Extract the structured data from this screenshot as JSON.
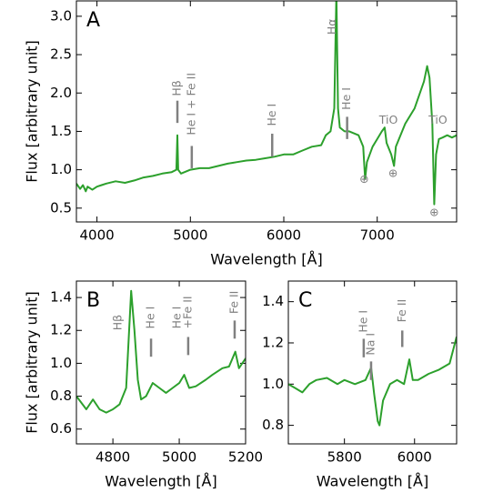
{
  "chart_data": [
    {
      "type": "line",
      "panel_label": "A",
      "xlabel": "Wavelength [Å]",
      "ylabel": "Flux [arbitrary unit]",
      "color": "#2ca02c",
      "xlim": [
        3780,
        7850
      ],
      "ylim": [
        0.32,
        3.2
      ],
      "xticks": [
        4000,
        5000,
        6000,
        7000
      ],
      "yticks": [
        0.5,
        {
          "value": 1,
          "label": "1.0"
        },
        1.5,
        {
          "value": 2,
          "label": "2.0"
        },
        2.5,
        {
          "value": 3,
          "label": "3.0"
        }
      ],
      "x": [
        3780,
        3820,
        3850,
        3880,
        3900,
        3950,
        4000,
        4050,
        4100,
        4200,
        4300,
        4400,
        4500,
        4600,
        4700,
        4800,
        4850,
        4861,
        4870,
        4900,
        5000,
        5100,
        5200,
        5300,
        5400,
        5500,
        5600,
        5700,
        5800,
        5900,
        6000,
        6100,
        6200,
        6300,
        6400,
        6450,
        6500,
        6540,
        6563,
        6580,
        6600,
        6650,
        6700,
        6800,
        6850,
        6870,
        6890,
        6950,
        7000,
        7050,
        7080,
        7100,
        7150,
        7180,
        7200,
        7300,
        7400,
        7500,
        7535,
        7560,
        7590,
        7610,
        7630,
        7660,
        7700,
        7750,
        7800,
        7850
      ],
      "values": [
        0.82,
        0.75,
        0.8,
        0.72,
        0.78,
        0.74,
        0.78,
        0.8,
        0.82,
        0.85,
        0.83,
        0.86,
        0.9,
        0.92,
        0.95,
        0.97,
        1.0,
        1.45,
        1.0,
        0.95,
        1.0,
        1.02,
        1.02,
        1.05,
        1.08,
        1.1,
        1.12,
        1.13,
        1.15,
        1.17,
        1.2,
        1.2,
        1.25,
        1.3,
        1.32,
        1.45,
        1.5,
        1.8,
        3.3,
        1.8,
        1.55,
        1.5,
        1.5,
        1.45,
        1.3,
        0.88,
        1.1,
        1.3,
        1.4,
        1.5,
        1.55,
        1.35,
        1.2,
        1.05,
        1.3,
        1.6,
        1.8,
        2.15,
        2.35,
        2.2,
        1.6,
        0.55,
        1.2,
        1.4,
        1.42,
        1.45,
        1.42,
        1.45
      ],
      "annotations": [
        {
          "text": "Hβ",
          "x": 4861,
          "y": 1.96,
          "vertical": true,
          "marker": [
            1.61,
            1.9
          ]
        },
        {
          "text": "He I + Fe II",
          "x": 5015,
          "y": 1.45,
          "vertical": true,
          "marker": [
            1.02,
            1.31
          ]
        },
        {
          "text": "He I",
          "x": 5876,
          "y": 1.57,
          "vertical": true,
          "marker": [
            1.17,
            1.47
          ]
        },
        {
          "text": "Hα",
          "x": 6520,
          "y": 2.76,
          "vertical": true
        },
        {
          "text": "He I",
          "x": 6678,
          "y": 1.78,
          "vertical": true,
          "marker": [
            1.4,
            1.69
          ]
        },
        {
          "text": "TiO",
          "x": 7120,
          "y": 1.64,
          "vertical": false
        },
        {
          "text": "TiO",
          "x": 7650,
          "y": 1.64,
          "vertical": false
        },
        {
          "text": "⊕",
          "x": 6860,
          "y": 0.87,
          "vertical": false
        },
        {
          "text": "⊕",
          "x": 7170,
          "y": 0.95,
          "vertical": false
        },
        {
          "text": "⊕",
          "x": 7610,
          "y": 0.44,
          "vertical": false
        }
      ]
    },
    {
      "type": "line",
      "panel_label": "B",
      "xlabel": "Wavelength [Å]",
      "ylabel": "Flux [arbitrary unit]",
      "color": "#2ca02c",
      "xlim": [
        4690,
        5200
      ],
      "ylim": [
        0.51,
        1.5
      ],
      "xticks": [
        4800,
        5000,
        5200
      ],
      "yticks": [
        0.6,
        0.8,
        {
          "value": 1,
          "label": "1.0"
        },
        1.2,
        1.4
      ],
      "x": [
        4690,
        4720,
        4740,
        4760,
        4780,
        4800,
        4820,
        4840,
        4855,
        4865,
        4875,
        4885,
        4900,
        4920,
        4940,
        4960,
        4980,
        5000,
        5015,
        5030,
        5050,
        5080,
        5100,
        5130,
        5150,
        5169,
        5180,
        5200
      ],
      "values": [
        0.8,
        0.72,
        0.78,
        0.72,
        0.7,
        0.72,
        0.75,
        0.85,
        1.44,
        1.2,
        0.9,
        0.78,
        0.8,
        0.88,
        0.85,
        0.82,
        0.85,
        0.88,
        0.93,
        0.85,
        0.86,
        0.9,
        0.93,
        0.97,
        0.98,
        1.07,
        0.97,
        1.03
      ],
      "annotations": [
        {
          "text": "Hβ",
          "x": 4816,
          "y": 1.2,
          "vertical": true
        },
        {
          "text": "He I",
          "x": 4915,
          "y": 1.21,
          "vertical": true,
          "marker": [
            1.04,
            1.15
          ]
        },
        {
          "text": "He I",
          "x": 4995,
          "y": 1.21,
          "vertical": true
        },
        {
          "text": "+Fe II",
          "x": 5027,
          "y": 1.21,
          "vertical": true,
          "marker": [
            1.05,
            1.16
          ]
        },
        {
          "text": "Fe II",
          "x": 5167,
          "y": 1.3,
          "vertical": true,
          "marker": [
            1.15,
            1.26
          ]
        }
      ]
    },
    {
      "type": "line",
      "panel_label": "C",
      "xlabel": "Wavelength [Å]",
      "color": "#2ca02c",
      "xlim": [
        5640,
        6120
      ],
      "ylim": [
        0.71,
        1.5
      ],
      "xticks": [
        5800,
        6000
      ],
      "yticks": [
        0.8,
        {
          "value": 1,
          "label": "1.0"
        },
        1.2,
        1.4
      ],
      "x": [
        5640,
        5660,
        5680,
        5700,
        5720,
        5750,
        5780,
        5800,
        5830,
        5860,
        5876,
        5885,
        5895,
        5900,
        5910,
        5930,
        5950,
        5970,
        5985,
        5995,
        6010,
        6040,
        6070,
        6100,
        6120
      ],
      "values": [
        1.0,
        0.98,
        0.96,
        1.0,
        1.02,
        1.03,
        1.0,
        1.02,
        1.0,
        1.02,
        1.08,
        0.95,
        0.82,
        0.8,
        0.92,
        1.0,
        1.02,
        1.0,
        1.12,
        1.02,
        1.02,
        1.05,
        1.07,
        1.1,
        1.23
      ],
      "annotations": [
        {
          "text": "He I",
          "x": 5855,
          "y": 1.25,
          "vertical": true,
          "marker": [
            1.13,
            1.22
          ]
        },
        {
          "text": "Na I",
          "x": 5876,
          "y": 1.14,
          "vertical": true,
          "marker": [
            1.02,
            1.11
          ]
        },
        {
          "text": "Fe II",
          "x": 5965,
          "y": 1.3,
          "vertical": true,
          "marker": [
            1.18,
            1.26
          ]
        }
      ]
    }
  ]
}
